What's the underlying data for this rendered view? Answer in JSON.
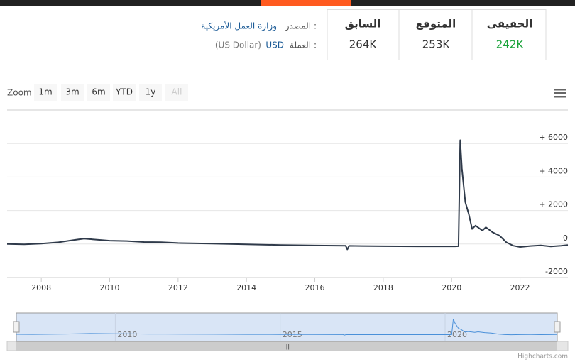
{
  "header": {
    "source_label": "المصدر :",
    "source": "وزارة العمل الأمريكية",
    "currency_label": "العملة :",
    "currency_code": "USD",
    "currency_name": "(US Dollar)"
  },
  "stats": [
    {
      "label": "الحقيقى",
      "value": "242K",
      "color": "#1aa33a"
    },
    {
      "label": "المتوقع",
      "value": "253K",
      "color": "#333333"
    },
    {
      "label": "السابق",
      "value": "264K",
      "color": "#333333"
    }
  ],
  "zoom": {
    "label": "Zoom",
    "buttons": [
      "1m",
      "3m",
      "6m",
      "YTD",
      "1y",
      "All"
    ]
  },
  "chart_data": {
    "type": "line",
    "x": [
      2007.0,
      2007.5,
      2008.0,
      2008.5,
      2009.0,
      2009.25,
      2009.5,
      2010.0,
      2010.5,
      2011.0,
      2011.5,
      2012.0,
      2013.0,
      2014.0,
      2015.0,
      2016.0,
      2016.9,
      2016.95,
      2017.0,
      2018.0,
      2019.0,
      2020.1,
      2020.2,
      2020.25,
      2020.3,
      2020.4,
      2020.5,
      2020.6,
      2020.7,
      2020.9,
      2021.0,
      2021.2,
      2021.4,
      2021.6,
      2021.8,
      2022.0,
      2022.3,
      2022.6,
      2022.9,
      2023.2,
      2023.4
    ],
    "series": [
      {
        "color": "#2f3a4a",
        "values": [
          0,
          -20,
          20,
          100,
          250,
          320,
          280,
          200,
          180,
          120,
          110,
          60,
          20,
          -20,
          -60,
          -90,
          -100,
          -320,
          -110,
          -130,
          -140,
          -140,
          -130,
          6200,
          4500,
          2500,
          1800,
          900,
          1100,
          800,
          1000,
          700,
          500,
          100,
          -100,
          -180,
          -120,
          -80,
          -150,
          -100,
          -60
        ]
      }
    ],
    "xlim": [
      2007,
      2023.4
    ],
    "xticks": [
      2008,
      2010,
      2012,
      2014,
      2016,
      2018,
      2020,
      2022
    ],
    "ylim": [
      -2000,
      8000
    ],
    "yticks": [
      -2000,
      0,
      {
        "value": 2000,
        "label": "+ 2000"
      },
      {
        "value": 4000,
        "label": "+ 4000"
      },
      {
        "value": 6000,
        "label": "+ 6000"
      }
    ],
    "grid": true
  },
  "navigator": {
    "xticks": [
      2010,
      2015,
      2020
    ]
  },
  "credits": "Highcharts.com"
}
